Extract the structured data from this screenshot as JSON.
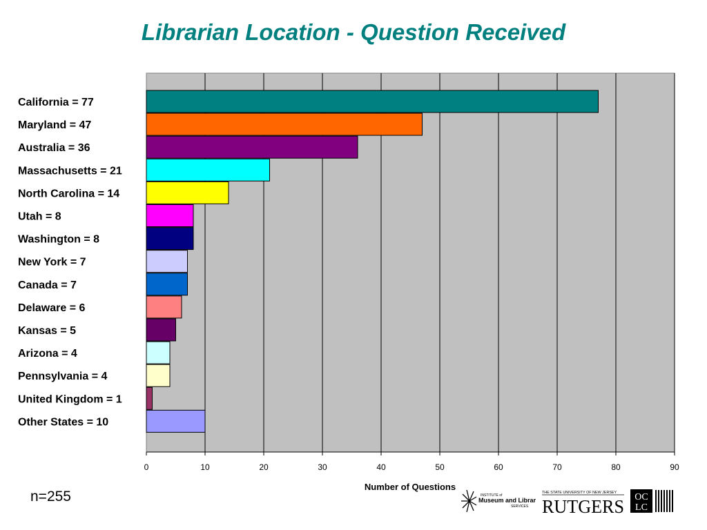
{
  "slide": {
    "title": "Librarian Location - Question Received",
    "note": "n=255"
  },
  "logos": {
    "imls": {
      "line1": "INSTITUTE of",
      "line2": "Museum and Library",
      "line3": "SERVICES"
    },
    "rutgers": {
      "line1": "THE STATE UNIVERSITY OF NEW JERSEY",
      "line2": "RUTGERS"
    },
    "oclc": {
      "line1": "OC",
      "line2": "LC"
    }
  },
  "chart_data": {
    "type": "bar",
    "orientation": "horizontal",
    "title": "",
    "xlabel": "Number of Questions",
    "ylabel": "",
    "xlim": [
      0,
      90
    ],
    "xticks": [
      0,
      10,
      20,
      30,
      40,
      50,
      60,
      70,
      80,
      90
    ],
    "grid": true,
    "plot_background": "#c0c0c0",
    "categories": [
      "California = 77",
      "Maryland = 47",
      "Australia = 36",
      "Massachusetts = 21",
      "North Carolina = 14",
      "Utah = 8",
      "Washington = 8",
      "New York = 7",
      "Canada = 7",
      "Delaware = 6",
      "Kansas = 5",
      "Arizona = 4",
      "Pennsylvania = 4",
      "United Kingdom = 1",
      "Other States = 10"
    ],
    "values": [
      77,
      47,
      36,
      21,
      14,
      8,
      8,
      7,
      7,
      6,
      5,
      4,
      4,
      1,
      10
    ],
    "colors": [
      "#008080",
      "#ff6600",
      "#800080",
      "#00ffff",
      "#ffff00",
      "#ff00ff",
      "#000080",
      "#ccccff",
      "#0066cc",
      "#ff8080",
      "#660066",
      "#ccffff",
      "#ffffcc",
      "#993366",
      "#9999ff"
    ]
  }
}
